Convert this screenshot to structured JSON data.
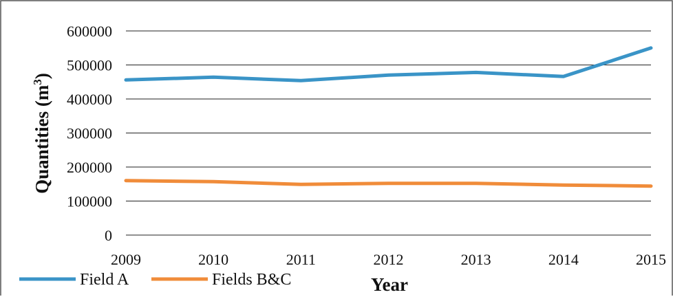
{
  "chart_data": {
    "type": "line",
    "x": [
      2009,
      2010,
      2011,
      2012,
      2013,
      2014,
      2015
    ],
    "x_tick_labels": [
      "2009",
      "2010",
      "2011",
      "2012",
      "2013",
      "2014",
      "2015"
    ],
    "series": [
      {
        "name": "Field A",
        "color": "#3a94c7",
        "values": [
          456000,
          464000,
          454000,
          470000,
          478000,
          466000,
          550000
        ]
      },
      {
        "name": "Fields B&C",
        "color": "#f08c3a",
        "values": [
          160000,
          157000,
          149000,
          152000,
          152000,
          147000,
          144000
        ]
      }
    ],
    "xlabel": "Year",
    "ylabel": {
      "main": "Quantities (m",
      "superscript": "3",
      "close": ")"
    },
    "ylim": [
      0,
      600000
    ],
    "y_ticks": [
      0,
      100000,
      200000,
      300000,
      400000,
      500000,
      600000
    ],
    "y_tick_labels": [
      "0",
      "100000",
      "200000",
      "300000",
      "400000",
      "500000",
      "600000"
    ],
    "grid": "horizontal",
    "legend_position": "bottom-left"
  }
}
